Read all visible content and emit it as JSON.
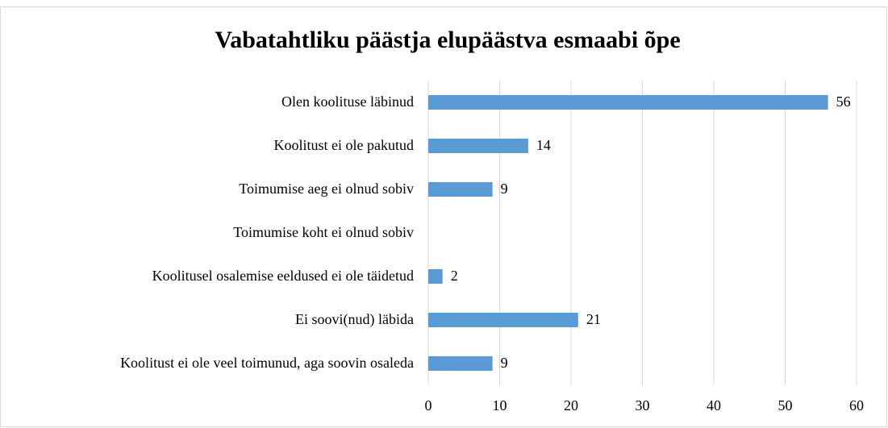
{
  "chart_data": {
    "type": "bar",
    "orientation": "horizontal",
    "title": "Vabatahtliku päästja elupäästva esmaabi õpe",
    "categories": [
      "Olen koolituse läbinud",
      "Koolitust ei ole pakutud",
      "Toimumise aeg ei olnud sobiv",
      "Toimumise koht ei olnud sobiv",
      "Koolitusel osalemise eeldused ei ole täidetud",
      "Ei soovi(nud) läbida",
      "Koolitust ei ole veel toimunud, aga soovin osaleda"
    ],
    "values": [
      56,
      14,
      9,
      null,
      2,
      21,
      9
    ],
    "color": "#5b9bd5",
    "xlim": [
      0,
      60
    ],
    "xticks": [
      0,
      10,
      20,
      30,
      40,
      50,
      60
    ],
    "grid": true
  }
}
